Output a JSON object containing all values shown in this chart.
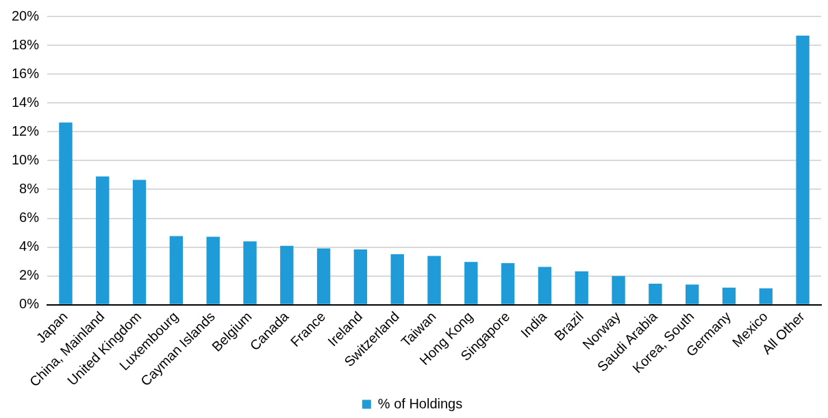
{
  "chart_data": {
    "type": "bar",
    "categories": [
      "Japan",
      "China, Mainland",
      "United Kingdom",
      "Luxembourg",
      "Cayman Islands",
      "Belgium",
      "Canada",
      "France",
      "Ireland",
      "Switzerland",
      "Taiwan",
      "Hong Kong",
      "Singapore",
      "India",
      "Brazil",
      "Norway",
      "Saudi Arabia",
      "Korea, South",
      "Germany",
      "Mexico",
      "All Other"
    ],
    "series": [
      {
        "name": "% of Holdings",
        "color": "#1f9bd7",
        "values": [
          12.65,
          8.9,
          8.67,
          4.77,
          4.72,
          4.4,
          4.09,
          3.91,
          3.84,
          3.51,
          3.39,
          2.98,
          2.89,
          2.63,
          2.32,
          2.0,
          1.46,
          1.4,
          1.19,
          1.14,
          18.67
        ]
      }
    ],
    "ylim": [
      0,
      20
    ],
    "yticks": [
      {
        "value": 0,
        "label": "0%"
      },
      {
        "value": 2,
        "label": "2%"
      },
      {
        "value": 4,
        "label": "4%"
      },
      {
        "value": 6,
        "label": "6%"
      },
      {
        "value": 8,
        "label": "8%"
      },
      {
        "value": 10,
        "label": "10%"
      },
      {
        "value": 12,
        "label": "12%"
      },
      {
        "value": 14,
        "label": "14%"
      },
      {
        "value": 16,
        "label": "16%"
      },
      {
        "value": 18,
        "label": "18%"
      },
      {
        "value": 20,
        "label": "20%"
      }
    ],
    "grid": "y",
    "legend": "bottom"
  }
}
